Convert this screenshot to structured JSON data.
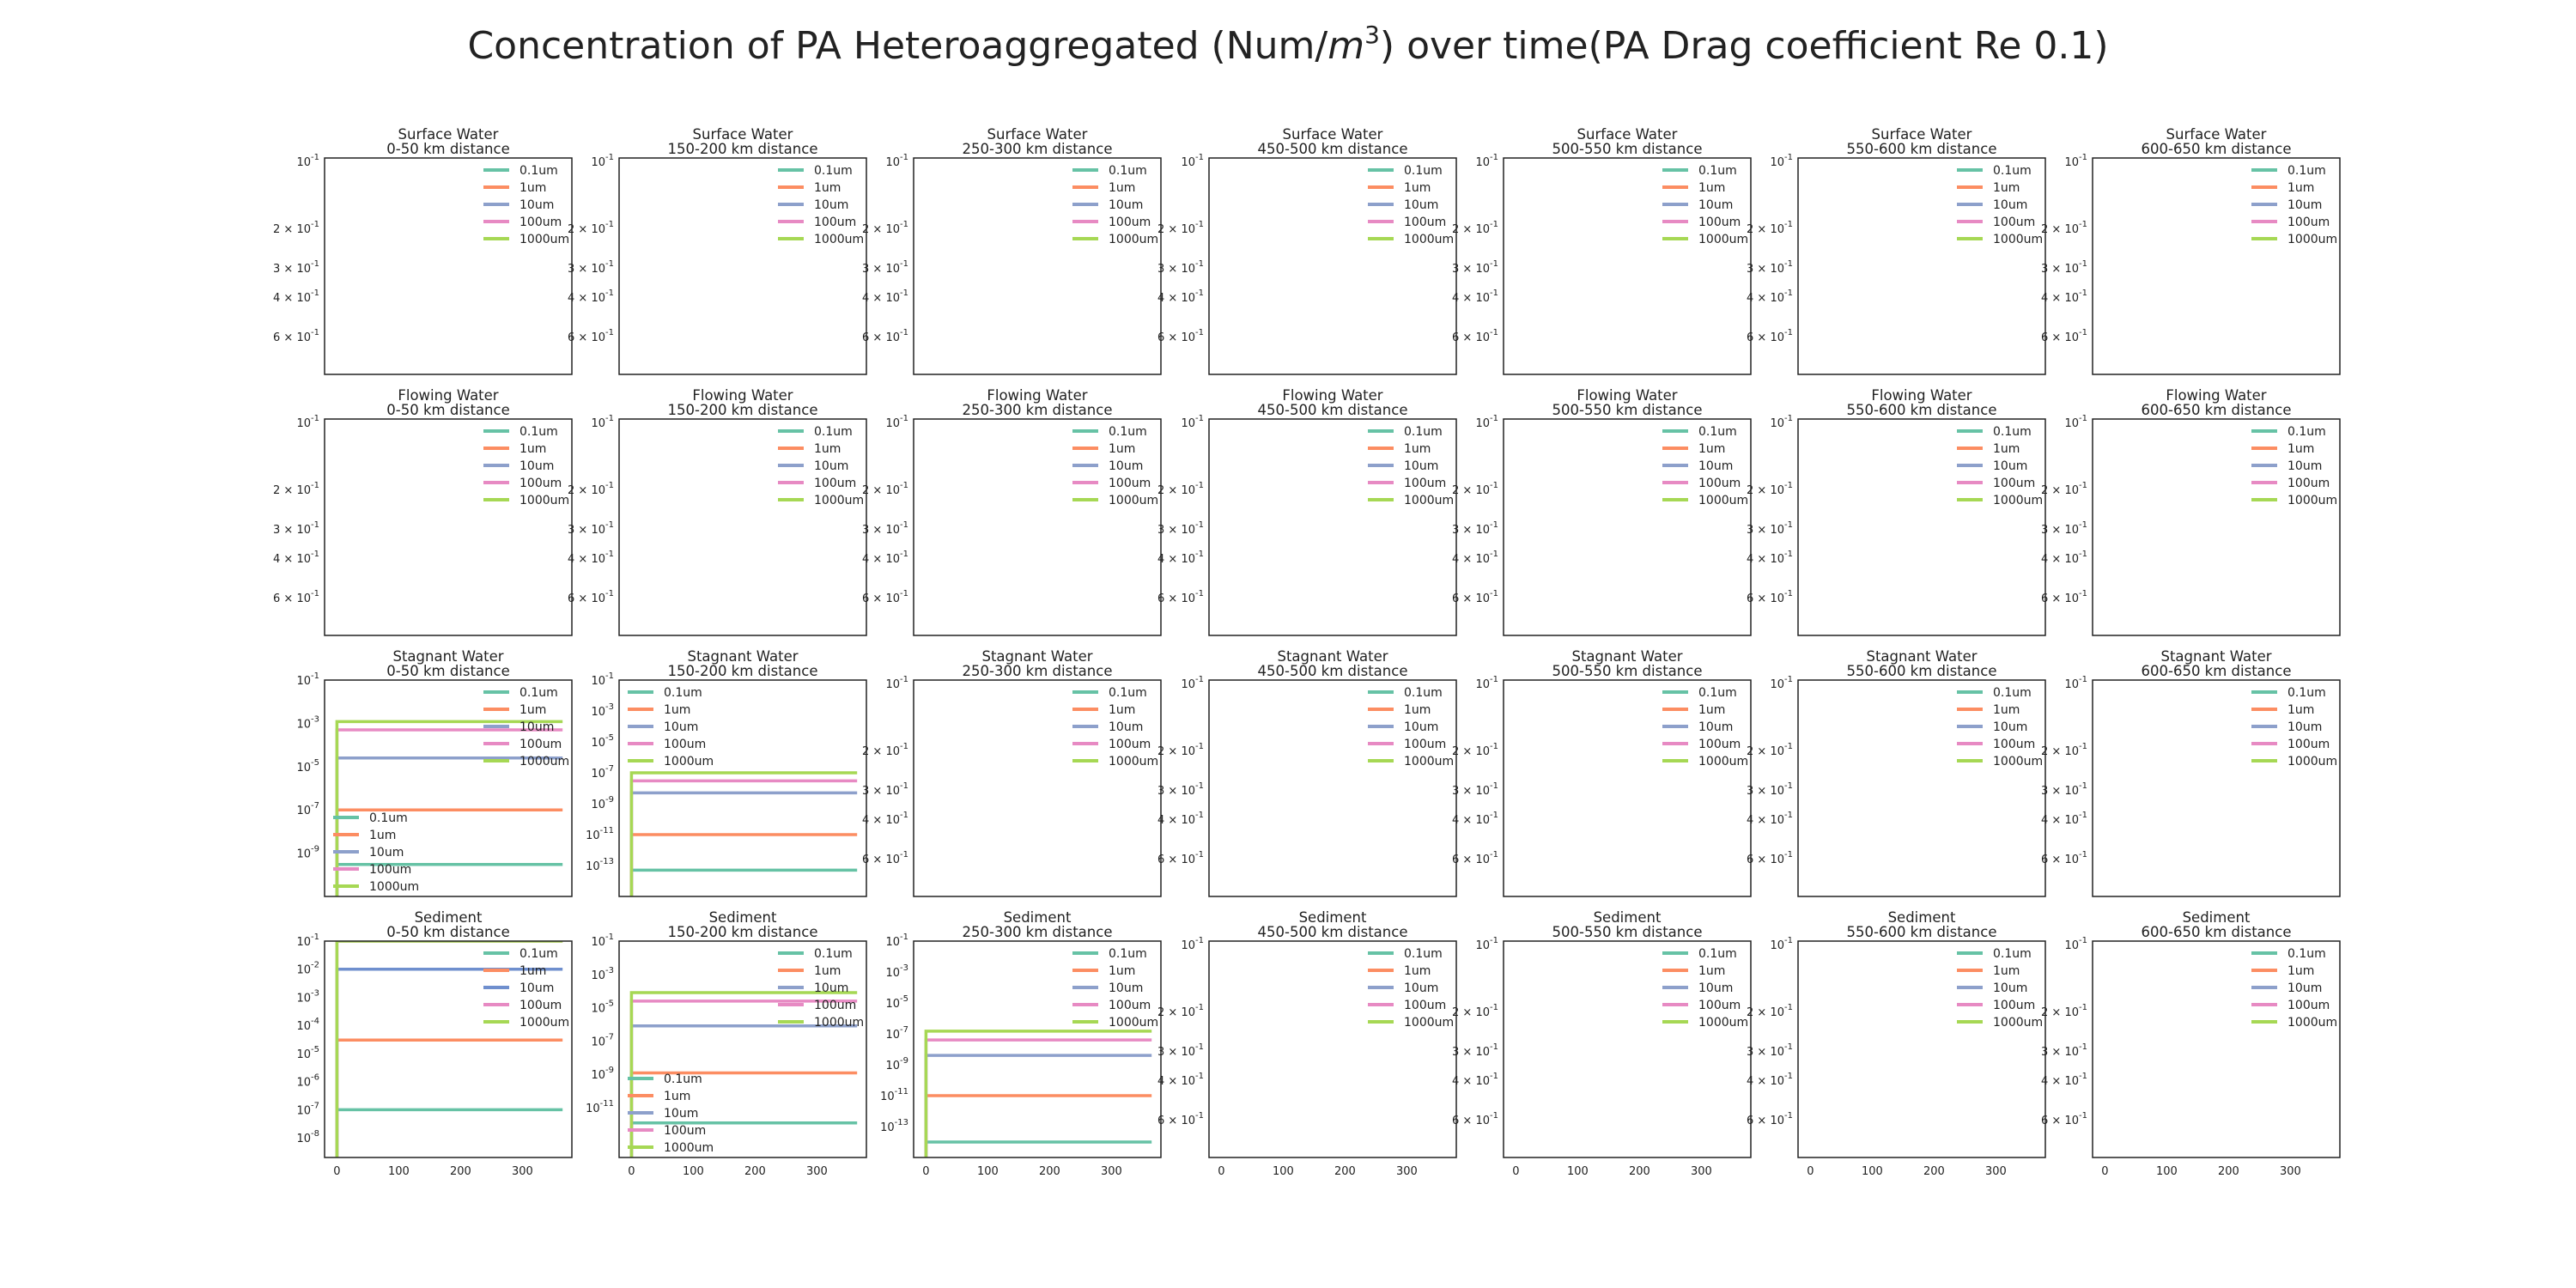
{
  "figure": {
    "title_prefix": "Concentration of PA Heteroaggregated (Num/",
    "title_unit_m": "m",
    "title_unit_exp": "3",
    "title_suffix": ") over time(PA Drag coefficient Re 0.1)"
  },
  "compartments": [
    "Surface Water",
    "Flowing Water",
    "Stagnant Water",
    "Sediment"
  ],
  "distances": [
    "0-50 km distance",
    "150-200 km distance",
    "250-300 km distance",
    "450-500 km distance",
    "500-550 km distance",
    "550-600 km distance",
    "600-650 km distance"
  ],
  "series_names": [
    "0.1um",
    "1um",
    "10um",
    "100um",
    "1000um"
  ],
  "colors": [
    "#66c2a5",
    "#fc8d62",
    "#8da0cb",
    "#e78ac3",
    "#a6d854"
  ],
  "colors_variant": [
    "#66c2a5",
    "#fc8d62",
    "#6f8fce",
    "#e78ac3",
    "#a6d854"
  ],
  "x_tick_labels": [
    "0",
    "100",
    "200",
    "300"
  ],
  "empty_yticks": [
    {
      "mant": "",
      "exp": "-1"
    },
    {
      "mant": "2 × ",
      "exp": "-1"
    },
    {
      "mant": "3 × ",
      "exp": "-1"
    },
    {
      "mant": "4 × ",
      "exp": "-1"
    },
    {
      "mant": "6 × ",
      "exp": "-1"
    }
  ],
  "chart_data": [
    {
      "type": "line",
      "compartment": "Stagnant Water",
      "distance": "0-50 km distance",
      "yscale": "log",
      "y_inverted": true,
      "x": [
        0,
        365
      ],
      "xlim": [
        -20,
        380
      ],
      "ylim": [
        0.1,
        1e-11
      ],
      "yticks": [
        {
          "mant": "",
          "exp": "-1"
        },
        {
          "mant": "",
          "exp": "-3"
        },
        {
          "mant": "",
          "exp": "-5"
        },
        {
          "mant": "",
          "exp": "-7"
        },
        {
          "mant": "",
          "exp": "-9"
        }
      ],
      "ytick_values": [
        0.1,
        0.001,
        1e-05,
        1e-07,
        1e-09
      ],
      "series": [
        {
          "name": "0.1um",
          "value": 3e-10
        },
        {
          "name": "1um",
          "value": 1e-07
        },
        {
          "name": "10um",
          "value": 2.5e-05
        },
        {
          "name": "100um",
          "value": 0.0005
        },
        {
          "name": "1000um",
          "value": 0.0012
        }
      ],
      "legends": [
        "upper right",
        "lower left"
      ]
    },
    {
      "type": "line",
      "compartment": "Stagnant Water",
      "distance": "150-200 km distance",
      "yscale": "log",
      "y_inverted": true,
      "x": [
        0,
        365
      ],
      "xlim": [
        -20,
        380
      ],
      "ylim": [
        0.1,
        1e-15
      ],
      "yticks": [
        {
          "mant": "",
          "exp": "-1"
        },
        {
          "mant": "",
          "exp": "-3"
        },
        {
          "mant": "",
          "exp": "-5"
        },
        {
          "mant": "",
          "exp": "-7"
        },
        {
          "mant": "",
          "exp": "-9"
        },
        {
          "mant": "",
          "exp": "-11"
        },
        {
          "mant": "",
          "exp": "-13"
        }
      ],
      "ytick_values": [
        0.1,
        0.001,
        1e-05,
        1e-07,
        1e-09,
        1e-11,
        1e-13
      ],
      "series": [
        {
          "name": "0.1um",
          "value": 5e-14
        },
        {
          "name": "1um",
          "value": 1e-11
        },
        {
          "name": "10um",
          "value": 5e-09
        },
        {
          "name": "100um",
          "value": 3e-08
        },
        {
          "name": "1000um",
          "value": 1e-07
        }
      ],
      "legends": [
        "upper left"
      ]
    },
    {
      "type": "line",
      "compartment": "Sediment",
      "distance": "0-50 km distance",
      "yscale": "log",
      "y_inverted": true,
      "x": [
        0,
        365
      ],
      "xlim": [
        -20,
        380
      ],
      "ylim": [
        0.1,
        2e-09
      ],
      "yticks": [
        {
          "mant": "",
          "exp": "-1"
        },
        {
          "mant": "",
          "exp": "-2"
        },
        {
          "mant": "",
          "exp": "-3"
        },
        {
          "mant": "",
          "exp": "-4"
        },
        {
          "mant": "",
          "exp": "-5"
        },
        {
          "mant": "",
          "exp": "-6"
        },
        {
          "mant": "",
          "exp": "-7"
        },
        {
          "mant": "",
          "exp": "-8"
        }
      ],
      "ytick_values": [
        0.1,
        0.01,
        0.001,
        0.0001,
        1e-05,
        1e-06,
        1e-07,
        1e-08
      ],
      "series": [
        {
          "name": "0.1um",
          "value": 1e-07
        },
        {
          "name": "1um",
          "value": 3e-05
        },
        {
          "name": "10um",
          "value": 0.01
        },
        {
          "name": "100um",
          "value": 0.1
        },
        {
          "name": "1000um",
          "value": 0.1
        }
      ],
      "color_variant": true,
      "legends": [
        "upper right"
      ]
    },
    {
      "type": "line",
      "compartment": "Sediment",
      "distance": "150-200 km distance",
      "yscale": "log",
      "y_inverted": true,
      "x": [
        0,
        365
      ],
      "xlim": [
        -20,
        380
      ],
      "ylim": [
        0.1,
        1e-14
      ],
      "yticks": [
        {
          "mant": "",
          "exp": "-1"
        },
        {
          "mant": "",
          "exp": "-3"
        },
        {
          "mant": "",
          "exp": "-5"
        },
        {
          "mant": "",
          "exp": "-7"
        },
        {
          "mant": "",
          "exp": "-9"
        },
        {
          "mant": "",
          "exp": "-11"
        }
      ],
      "ytick_values": [
        0.1,
        0.001,
        1e-05,
        1e-07,
        1e-09,
        1e-11
      ],
      "series": [
        {
          "name": "0.1um",
          "value": 1.2e-12
        },
        {
          "name": "1um",
          "value": 1.2e-09
        },
        {
          "name": "10um",
          "value": 8e-07
        },
        {
          "name": "100um",
          "value": 2.5e-05
        },
        {
          "name": "1000um",
          "value": 8e-05
        }
      ],
      "legends": [
        "upper right",
        "lower left"
      ]
    },
    {
      "type": "line",
      "compartment": "Sediment",
      "distance": "250-300 km distance",
      "yscale": "log",
      "y_inverted": true,
      "x": [
        0,
        365
      ],
      "xlim": [
        -20,
        380
      ],
      "ylim": [
        0.1,
        1e-15
      ],
      "yticks": [
        {
          "mant": "",
          "exp": "-1"
        },
        {
          "mant": "",
          "exp": "-3"
        },
        {
          "mant": "",
          "exp": "-5"
        },
        {
          "mant": "",
          "exp": "-7"
        },
        {
          "mant": "",
          "exp": "-9"
        },
        {
          "mant": "",
          "exp": "-11"
        },
        {
          "mant": "",
          "exp": "-13"
        }
      ],
      "ytick_values": [
        0.1,
        0.001,
        1e-05,
        1e-07,
        1e-09,
        1e-11,
        1e-13
      ],
      "series": [
        {
          "name": "0.1um",
          "value": 1e-14
        },
        {
          "name": "1um",
          "value": 1e-11
        },
        {
          "name": "10um",
          "value": 4e-09
        },
        {
          "name": "100um",
          "value": 4e-08
        },
        {
          "name": "1000um",
          "value": 1.5e-07
        }
      ],
      "legends": [
        "upper right"
      ]
    }
  ]
}
